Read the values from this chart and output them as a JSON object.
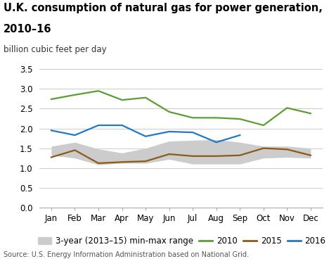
{
  "title_line1": "U.K. consumption of natural gas for power generation,",
  "title_line2": "2010–16",
  "ylabel": "billion cubic feet per day",
  "source": "Source: U.S. Energy Information Administration based on National Grid.",
  "months": [
    "Jan",
    "Feb",
    "Mar",
    "Apr",
    "May",
    "Jun",
    "Jul",
    "Aug",
    "Sep",
    "Oct",
    "Nov",
    "Dec"
  ],
  "y2010": [
    2.74,
    2.85,
    2.95,
    2.72,
    2.78,
    2.42,
    2.27,
    2.27,
    2.24,
    2.08,
    2.52,
    2.38
  ],
  "y2015": [
    1.27,
    1.45,
    1.12,
    1.15,
    1.17,
    1.35,
    1.3,
    1.3,
    1.32,
    1.5,
    1.47,
    1.32
  ],
  "y2016": [
    1.95,
    1.83,
    2.08,
    2.08,
    1.8,
    1.92,
    1.9,
    1.65,
    1.83,
    null,
    null,
    null
  ],
  "range_min": [
    1.32,
    1.25,
    1.08,
    1.12,
    1.12,
    1.22,
    1.1,
    1.1,
    1.1,
    1.25,
    1.27,
    1.25
  ],
  "range_max": [
    1.55,
    1.65,
    1.48,
    1.38,
    1.5,
    1.68,
    1.7,
    1.72,
    1.65,
    1.55,
    1.55,
    1.5
  ],
  "color_2010": "#5a9e2f",
  "color_2015": "#8b5a1a",
  "color_2016": "#1f78c8",
  "color_range": "#cccccc",
  "ylim": [
    0.0,
    3.5
  ],
  "yticks": [
    0.0,
    0.5,
    1.0,
    1.5,
    2.0,
    2.5,
    3.0,
    3.5
  ],
  "title_fontsize": 10.5,
  "sublabel_fontsize": 8.5,
  "tick_fontsize": 8.5,
  "legend_fontsize": 8.5,
  "source_fontsize": 7.0
}
